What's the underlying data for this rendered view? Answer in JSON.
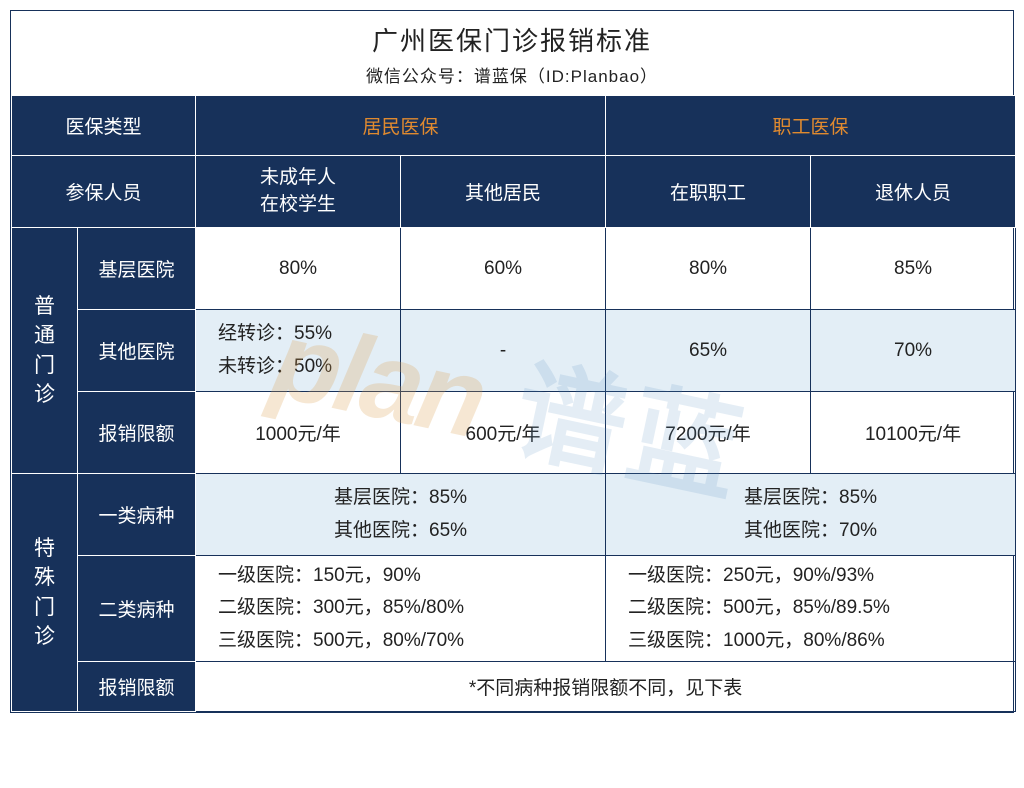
{
  "title": "广州医保门诊报销标准",
  "subtitle": "微信公众号：谱蓝保（ID:Planbao）",
  "headers": {
    "type_label": "医保类型",
    "resident": "居民医保",
    "employee": "职工医保",
    "person_label": "参保人员",
    "p1": "未成年人\n在校学生",
    "p2": "其他居民",
    "p3": "在职职工",
    "p4": "退休人员"
  },
  "sections": {
    "normal": {
      "label": "普通门诊",
      "rows": {
        "basic": {
          "label": "基层医院",
          "c1": "80%",
          "c2": "60%",
          "c3": "80%",
          "c4": "85%"
        },
        "other": {
          "label": "其他医院",
          "c1": "经转诊：55%\n未转诊：50%",
          "c2": "-",
          "c3": "65%",
          "c4": "70%"
        },
        "limit": {
          "label": "报销限额",
          "c1": "1000元/年",
          "c2": "600元/年",
          "c3": "7200元/年",
          "c4": "10100元/年"
        }
      }
    },
    "special": {
      "label": "特殊门诊",
      "rows": {
        "cat1": {
          "label": "一类病种",
          "left": "基层医院：85%\n其他医院：65%",
          "right": "基层医院：85%\n其他医院：70%"
        },
        "cat2": {
          "label": "二类病种",
          "left": "一级医院：150元，90%\n二级医院：300元，85%/80%\n三级医院：500元，80%/70%",
          "right": "一级医院：250元，90%/93%\n二级医院：500元，85%/89.5%\n三级医院：1000元，80%/86%"
        },
        "limit": {
          "label": "报销限额",
          "note": "*不同病种报销限额不同，见下表"
        }
      }
    }
  },
  "watermark": {
    "en": "plan",
    "cn": "谱蓝"
  },
  "colors": {
    "header_bg": "#17315a",
    "shade_bg": "#e3eef6",
    "accent": "#e08a2f"
  }
}
